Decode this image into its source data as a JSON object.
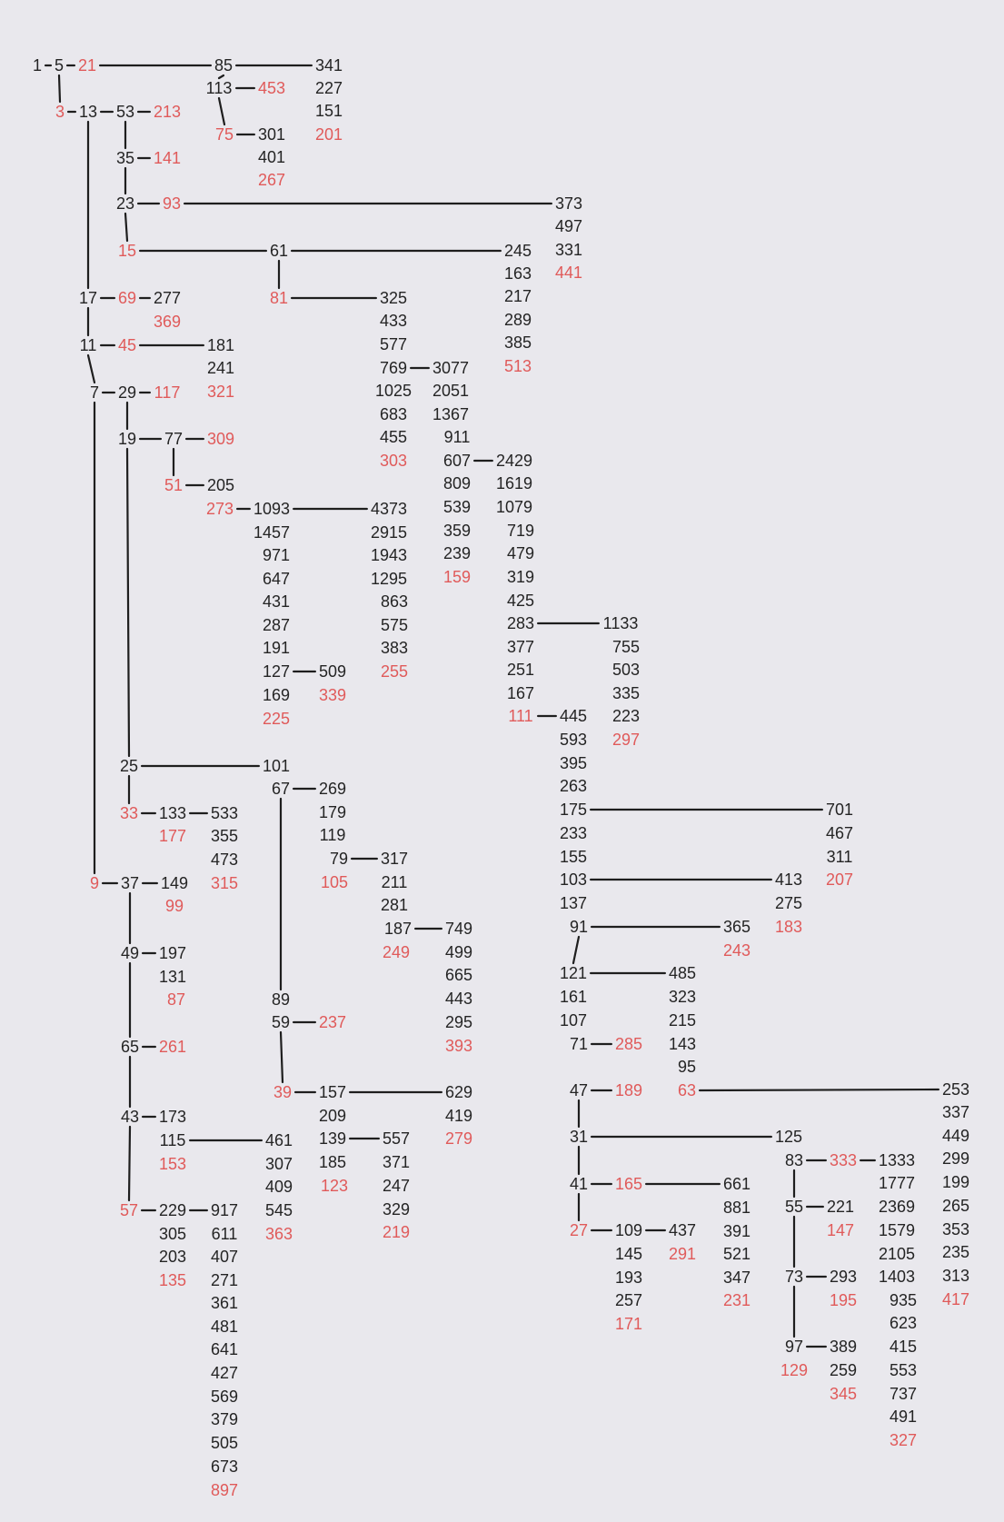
{
  "colors": {
    "background": "#e9e8ed",
    "number": "#242424",
    "highlight": "#e05a5a",
    "link": "#1e1e1e"
  },
  "numbers": [
    {
      "id": "n1",
      "v": "1"
    },
    {
      "id": "n5",
      "v": "5"
    },
    {
      "id": "n21",
      "v": "21",
      "red": true
    },
    {
      "id": "n85",
      "v": "85"
    },
    {
      "id": "n341",
      "v": "341"
    },
    {
      "id": "n227",
      "v": "227"
    },
    {
      "id": "n151",
      "v": "151"
    },
    {
      "id": "n201",
      "v": "201",
      "red": true
    },
    {
      "id": "n113",
      "v": "113"
    },
    {
      "id": "n453",
      "v": "453",
      "red": true
    },
    {
      "id": "n75",
      "v": "75",
      "red": true
    },
    {
      "id": "n301",
      "v": "301"
    },
    {
      "id": "n401",
      "v": "401"
    },
    {
      "id": "n267",
      "v": "267",
      "red": true
    },
    {
      "id": "n3",
      "v": "3",
      "red": true
    },
    {
      "id": "n13",
      "v": "13"
    },
    {
      "id": "n53",
      "v": "53"
    },
    {
      "id": "n213",
      "v": "213",
      "red": true
    },
    {
      "id": "n35",
      "v": "35"
    },
    {
      "id": "n141",
      "v": "141",
      "red": true
    },
    {
      "id": "n23",
      "v": "23"
    },
    {
      "id": "n93",
      "v": "93",
      "red": true
    },
    {
      "id": "n373",
      "v": "373"
    },
    {
      "id": "n497",
      "v": "497"
    },
    {
      "id": "n331",
      "v": "331"
    },
    {
      "id": "n441",
      "v": "441",
      "red": true
    },
    {
      "id": "n15",
      "v": "15",
      "red": true
    },
    {
      "id": "n61",
      "v": "61"
    },
    {
      "id": "n245",
      "v": "245"
    },
    {
      "id": "n163",
      "v": "163"
    },
    {
      "id": "n217",
      "v": "217"
    },
    {
      "id": "n289",
      "v": "289"
    },
    {
      "id": "n385",
      "v": "385"
    },
    {
      "id": "n513",
      "v": "513",
      "red": true
    },
    {
      "id": "n81",
      "v": "81",
      "red": true
    },
    {
      "id": "n325",
      "v": "325"
    },
    {
      "id": "n433",
      "v": "433"
    },
    {
      "id": "n577",
      "v": "577"
    },
    {
      "id": "n769",
      "v": "769"
    },
    {
      "id": "n1025",
      "v": "1025"
    },
    {
      "id": "n683",
      "v": "683"
    },
    {
      "id": "n455",
      "v": "455"
    },
    {
      "id": "n303",
      "v": "303",
      "red": true
    },
    {
      "id": "n3077",
      "v": "3077"
    },
    {
      "id": "n2051",
      "v": "2051"
    },
    {
      "id": "n1367",
      "v": "1367"
    },
    {
      "id": "n911",
      "v": "911"
    },
    {
      "id": "n607",
      "v": "607"
    },
    {
      "id": "n809",
      "v": "809"
    },
    {
      "id": "n539",
      "v": "539"
    },
    {
      "id": "n359",
      "v": "359"
    },
    {
      "id": "n239",
      "v": "239"
    },
    {
      "id": "n159",
      "v": "159",
      "red": true
    },
    {
      "id": "n2429",
      "v": "2429"
    },
    {
      "id": "n1619",
      "v": "1619"
    },
    {
      "id": "n1079",
      "v": "1079"
    },
    {
      "id": "n719",
      "v": "719"
    },
    {
      "id": "n479",
      "v": "479"
    },
    {
      "id": "n319",
      "v": "319"
    },
    {
      "id": "n425",
      "v": "425"
    },
    {
      "id": "n283",
      "v": "283"
    },
    {
      "id": "n377",
      "v": "377"
    },
    {
      "id": "n251",
      "v": "251"
    },
    {
      "id": "n167",
      "v": "167"
    },
    {
      "id": "n111",
      "v": "111",
      "red": true
    },
    {
      "id": "n1133",
      "v": "1133"
    },
    {
      "id": "n755",
      "v": "755"
    },
    {
      "id": "n503",
      "v": "503"
    },
    {
      "id": "n335",
      "v": "335"
    },
    {
      "id": "n223",
      "v": "223"
    },
    {
      "id": "n297",
      "v": "297",
      "red": true
    },
    {
      "id": "n445",
      "v": "445"
    },
    {
      "id": "n593",
      "v": "593"
    },
    {
      "id": "n395",
      "v": "395"
    },
    {
      "id": "n263",
      "v": "263"
    },
    {
      "id": "n175",
      "v": "175"
    },
    {
      "id": "n233",
      "v": "233"
    },
    {
      "id": "n155",
      "v": "155"
    },
    {
      "id": "n103",
      "v": "103"
    },
    {
      "id": "n137",
      "v": "137"
    },
    {
      "id": "n91",
      "v": "91"
    },
    {
      "id": "n701",
      "v": "701"
    },
    {
      "id": "n467",
      "v": "467"
    },
    {
      "id": "n311",
      "v": "311"
    },
    {
      "id": "n207",
      "v": "207",
      "red": true
    },
    {
      "id": "n413",
      "v": "413"
    },
    {
      "id": "n275",
      "v": "275"
    },
    {
      "id": "n183",
      "v": "183",
      "red": true
    },
    {
      "id": "n365",
      "v": "365"
    },
    {
      "id": "n243",
      "v": "243",
      "red": true
    },
    {
      "id": "n121",
      "v": "121"
    },
    {
      "id": "n161",
      "v": "161"
    },
    {
      "id": "n107",
      "v": "107"
    },
    {
      "id": "n71",
      "v": "71"
    },
    {
      "id": "n285",
      "v": "285",
      "red": true
    },
    {
      "id": "n47",
      "v": "47"
    },
    {
      "id": "n189",
      "v": "189",
      "red": true
    },
    {
      "id": "n485",
      "v": "485"
    },
    {
      "id": "n323",
      "v": "323"
    },
    {
      "id": "n215",
      "v": "215"
    },
    {
      "id": "n143",
      "v": "143"
    },
    {
      "id": "n95",
      "v": "95"
    },
    {
      "id": "n63",
      "v": "63",
      "red": true
    },
    {
      "id": "n253",
      "v": "253"
    },
    {
      "id": "n337",
      "v": "337"
    },
    {
      "id": "n449",
      "v": "449"
    },
    {
      "id": "n299",
      "v": "299"
    },
    {
      "id": "n199",
      "v": "199"
    },
    {
      "id": "n265",
      "v": "265"
    },
    {
      "id": "n353",
      "v": "353"
    },
    {
      "id": "n235",
      "v": "235"
    },
    {
      "id": "n313",
      "v": "313"
    },
    {
      "id": "n417",
      "v": "417",
      "red": true
    },
    {
      "id": "n31",
      "v": "31"
    },
    {
      "id": "n125",
      "v": "125"
    },
    {
      "id": "n83",
      "v": "83"
    },
    {
      "id": "n333",
      "v": "333",
      "red": true
    },
    {
      "id": "n1333",
      "v": "1333"
    },
    {
      "id": "n1777",
      "v": "1777"
    },
    {
      "id": "n2369",
      "v": "2369"
    },
    {
      "id": "n1579",
      "v": "1579"
    },
    {
      "id": "n2105",
      "v": "2105"
    },
    {
      "id": "n1403",
      "v": "1403"
    },
    {
      "id": "n935",
      "v": "935"
    },
    {
      "id": "n623",
      "v": "623"
    },
    {
      "id": "n415",
      "v": "415"
    },
    {
      "id": "n553",
      "v": "553"
    },
    {
      "id": "n737",
      "v": "737"
    },
    {
      "id": "n491",
      "v": "491"
    },
    {
      "id": "n327",
      "v": "327",
      "red": true
    },
    {
      "id": "n41",
      "v": "41"
    },
    {
      "id": "n165",
      "v": "165",
      "red": true
    },
    {
      "id": "n661",
      "v": "661"
    },
    {
      "id": "n881",
      "v": "881"
    },
    {
      "id": "n391",
      "v": "391"
    },
    {
      "id": "n521",
      "v": "521"
    },
    {
      "id": "n347",
      "v": "347"
    },
    {
      "id": "n231",
      "v": "231",
      "red": true
    },
    {
      "id": "n55",
      "v": "55"
    },
    {
      "id": "n221",
      "v": "221"
    },
    {
      "id": "n147",
      "v": "147",
      "red": true
    },
    {
      "id": "n27",
      "v": "27",
      "red": true
    },
    {
      "id": "n109",
      "v": "109"
    },
    {
      "id": "n437",
      "v": "437"
    },
    {
      "id": "n291",
      "v": "291",
      "red": true
    },
    {
      "id": "n145",
      "v": "145"
    },
    {
      "id": "n193",
      "v": "193"
    },
    {
      "id": "n257",
      "v": "257"
    },
    {
      "id": "n171",
      "v": "171",
      "red": true
    },
    {
      "id": "n73",
      "v": "73"
    },
    {
      "id": "n293",
      "v": "293"
    },
    {
      "id": "n195",
      "v": "195",
      "red": true
    },
    {
      "id": "n97",
      "v": "97"
    },
    {
      "id": "n389",
      "v": "389"
    },
    {
      "id": "n259",
      "v": "259"
    },
    {
      "id": "n345",
      "v": "345",
      "red": true
    },
    {
      "id": "n129",
      "v": "129",
      "red": true
    },
    {
      "id": "n17",
      "v": "17"
    },
    {
      "id": "n69",
      "v": "69",
      "red": true
    },
    {
      "id": "n277",
      "v": "277"
    },
    {
      "id": "n369",
      "v": "369",
      "red": true
    },
    {
      "id": "n11",
      "v": "11"
    },
    {
      "id": "n45",
      "v": "45",
      "red": true
    },
    {
      "id": "n181",
      "v": "181"
    },
    {
      "id": "n241",
      "v": "241"
    },
    {
      "id": "n321",
      "v": "321",
      "red": true
    },
    {
      "id": "n7",
      "v": "7"
    },
    {
      "id": "n29",
      "v": "29"
    },
    {
      "id": "n117",
      "v": "117",
      "red": true
    },
    {
      "id": "n19",
      "v": "19"
    },
    {
      "id": "n77",
      "v": "77"
    },
    {
      "id": "n309",
      "v": "309",
      "red": true
    },
    {
      "id": "n51",
      "v": "51",
      "red": true
    },
    {
      "id": "n205",
      "v": "205"
    },
    {
      "id": "n273",
      "v": "273",
      "red": true
    },
    {
      "id": "n1093",
      "v": "1093"
    },
    {
      "id": "n1457",
      "v": "1457"
    },
    {
      "id": "n971",
      "v": "971"
    },
    {
      "id": "n647",
      "v": "647"
    },
    {
      "id": "n431",
      "v": "431"
    },
    {
      "id": "n287",
      "v": "287"
    },
    {
      "id": "n191",
      "v": "191"
    },
    {
      "id": "n127",
      "v": "127"
    },
    {
      "id": "n169",
      "v": "169"
    },
    {
      "id": "n225",
      "v": "225",
      "red": true
    },
    {
      "id": "n509",
      "v": "509"
    },
    {
      "id": "n339",
      "v": "339",
      "red": true
    },
    {
      "id": "n4373",
      "v": "4373"
    },
    {
      "id": "n2915",
      "v": "2915"
    },
    {
      "id": "n1943",
      "v": "1943"
    },
    {
      "id": "n1295",
      "v": "1295"
    },
    {
      "id": "n863",
      "v": "863"
    },
    {
      "id": "n575",
      "v": "575"
    },
    {
      "id": "n383",
      "v": "383"
    },
    {
      "id": "n255",
      "v": "255",
      "red": true
    },
    {
      "id": "n25",
      "v": "25"
    },
    {
      "id": "n101",
      "v": "101"
    },
    {
      "id": "n67",
      "v": "67"
    },
    {
      "id": "n269",
      "v": "269"
    },
    {
      "id": "n179",
      "v": "179"
    },
    {
      "id": "n119",
      "v": "119"
    },
    {
      "id": "n79",
      "v": "79"
    },
    {
      "id": "n105",
      "v": "105",
      "red": true
    },
    {
      "id": "n317",
      "v": "317"
    },
    {
      "id": "n211",
      "v": "211"
    },
    {
      "id": "n281",
      "v": "281"
    },
    {
      "id": "n187",
      "v": "187"
    },
    {
      "id": "n249",
      "v": "249",
      "red": true
    },
    {
      "id": "n749",
      "v": "749"
    },
    {
      "id": "n499",
      "v": "499"
    },
    {
      "id": "n665",
      "v": "665"
    },
    {
      "id": "n443",
      "v": "443"
    },
    {
      "id": "n295",
      "v": "295"
    },
    {
      "id": "n393",
      "v": "393",
      "red": true
    },
    {
      "id": "n89",
      "v": "89"
    },
    {
      "id": "n59",
      "v": "59"
    },
    {
      "id": "n237",
      "v": "237",
      "red": true
    },
    {
      "id": "n39",
      "v": "39",
      "red": true
    },
    {
      "id": "n157",
      "v": "157"
    },
    {
      "id": "n209",
      "v": "209"
    },
    {
      "id": "n139",
      "v": "139"
    },
    {
      "id": "n185",
      "v": "185"
    },
    {
      "id": "n123",
      "v": "123",
      "red": true
    },
    {
      "id": "n629",
      "v": "629"
    },
    {
      "id": "n419",
      "v": "419"
    },
    {
      "id": "n279",
      "v": "279",
      "red": true
    },
    {
      "id": "n557",
      "v": "557"
    },
    {
      "id": "n371",
      "v": "371"
    },
    {
      "id": "n247",
      "v": "247"
    },
    {
      "id": "n329",
      "v": "329"
    },
    {
      "id": "n219",
      "v": "219",
      "red": true
    },
    {
      "id": "n33",
      "v": "33",
      "red": true
    },
    {
      "id": "n133",
      "v": "133"
    },
    {
      "id": "n177",
      "v": "177",
      "red": true
    },
    {
      "id": "n533",
      "v": "533"
    },
    {
      "id": "n355",
      "v": "355"
    },
    {
      "id": "n473",
      "v": "473"
    },
    {
      "id": "n315",
      "v": "315",
      "red": true
    },
    {
      "id": "n9",
      "v": "9",
      "red": true
    },
    {
      "id": "n37",
      "v": "37"
    },
    {
      "id": "n149",
      "v": "149"
    },
    {
      "id": "n99",
      "v": "99",
      "red": true
    },
    {
      "id": "n49",
      "v": "49"
    },
    {
      "id": "n197",
      "v": "197"
    },
    {
      "id": "n131",
      "v": "131"
    },
    {
      "id": "n87",
      "v": "87",
      "red": true
    },
    {
      "id": "n65",
      "v": "65"
    },
    {
      "id": "n261",
      "v": "261",
      "red": true
    },
    {
      "id": "n43",
      "v": "43"
    },
    {
      "id": "n173",
      "v": "173"
    },
    {
      "id": "n115",
      "v": "115"
    },
    {
      "id": "n153",
      "v": "153",
      "red": true
    },
    {
      "id": "n461",
      "v": "461"
    },
    {
      "id": "n307",
      "v": "307"
    },
    {
      "id": "n409",
      "v": "409"
    },
    {
      "id": "n545",
      "v": "545"
    },
    {
      "id": "n363",
      "v": "363",
      "red": true
    },
    {
      "id": "n57",
      "v": "57",
      "red": true
    },
    {
      "id": "n229",
      "v": "229"
    },
    {
      "id": "n305",
      "v": "305"
    },
    {
      "id": "n203",
      "v": "203"
    },
    {
      "id": "n135",
      "v": "135",
      "red": true
    },
    {
      "id": "n917",
      "v": "917"
    },
    {
      "id": "n611",
      "v": "611"
    },
    {
      "id": "n407",
      "v": "407"
    },
    {
      "id": "n271",
      "v": "271"
    },
    {
      "id": "n361",
      "v": "361"
    },
    {
      "id": "n481",
      "v": "481"
    },
    {
      "id": "n641",
      "v": "641"
    },
    {
      "id": "n427",
      "v": "427"
    },
    {
      "id": "n569",
      "v": "569"
    },
    {
      "id": "n379",
      "v": "379"
    },
    {
      "id": "n505",
      "v": "505"
    },
    {
      "id": "n673",
      "v": "673"
    },
    {
      "id": "n897",
      "v": "897",
      "red": true
    }
  ],
  "links": [
    [
      "n1",
      "n5"
    ],
    [
      "n5",
      "n21"
    ],
    [
      "n21",
      "n85"
    ],
    [
      "n85",
      "n341"
    ],
    [
      "n85",
      "n113"
    ],
    [
      "n113",
      "n453"
    ],
    [
      "n113",
      "n75"
    ],
    [
      "n75",
      "n301"
    ],
    [
      "n5",
      "n3"
    ],
    [
      "n3",
      "n13"
    ],
    [
      "n13",
      "n53"
    ],
    [
      "n53",
      "n213"
    ],
    [
      "n53",
      "n35"
    ],
    [
      "n35",
      "n141"
    ],
    [
      "n35",
      "n23"
    ],
    [
      "n23",
      "n93"
    ],
    [
      "n93",
      "n373"
    ],
    [
      "n23",
      "n15"
    ],
    [
      "n15",
      "n61"
    ],
    [
      "n61",
      "n245"
    ],
    [
      "n61",
      "n81"
    ],
    [
      "n81",
      "n325"
    ],
    [
      "n769",
      "n3077"
    ],
    [
      "n607",
      "n2429"
    ],
    [
      "n283",
      "n1133"
    ],
    [
      "n111",
      "n445"
    ],
    [
      "n175",
      "n701"
    ],
    [
      "n103",
      "n413"
    ],
    [
      "n91",
      "n365"
    ],
    [
      "n91",
      "n121"
    ],
    [
      "n121",
      "n485"
    ],
    [
      "n71",
      "n285"
    ],
    [
      "n47",
      "n189"
    ],
    [
      "n63",
      "n253"
    ],
    [
      "n47",
      "n31"
    ],
    [
      "n31",
      "n125"
    ],
    [
      "n83",
      "n333"
    ],
    [
      "n333",
      "n1333"
    ],
    [
      "n83",
      "n55"
    ],
    [
      "n31",
      "n41"
    ],
    [
      "n41",
      "n165"
    ],
    [
      "n165",
      "n661"
    ],
    [
      "n55",
      "n221"
    ],
    [
      "n55",
      "n73"
    ],
    [
      "n41",
      "n27"
    ],
    [
      "n27",
      "n109"
    ],
    [
      "n109",
      "n437"
    ],
    [
      "n73",
      "n293"
    ],
    [
      "n73",
      "n97"
    ],
    [
      "n97",
      "n389"
    ],
    [
      "n13",
      "n17"
    ],
    [
      "n17",
      "n69"
    ],
    [
      "n69",
      "n277"
    ],
    [
      "n17",
      "n11"
    ],
    [
      "n11",
      "n45"
    ],
    [
      "n45",
      "n181"
    ],
    [
      "n11",
      "n7"
    ],
    [
      "n7",
      "n29"
    ],
    [
      "n29",
      "n117"
    ],
    [
      "n29",
      "n19"
    ],
    [
      "n19",
      "n77"
    ],
    [
      "n77",
      "n309"
    ],
    [
      "n77",
      "n51"
    ],
    [
      "n51",
      "n205"
    ],
    [
      "n273",
      "n1093"
    ],
    [
      "n1093",
      "n4373"
    ],
    [
      "n127",
      "n509"
    ],
    [
      "n19",
      "n25"
    ],
    [
      "n25",
      "n101"
    ],
    [
      "n67",
      "n269"
    ],
    [
      "n67",
      "n89"
    ],
    [
      "n79",
      "n317"
    ],
    [
      "n187",
      "n749"
    ],
    [
      "n59",
      "n237"
    ],
    [
      "n59",
      "n39"
    ],
    [
      "n39",
      "n157"
    ],
    [
      "n157",
      "n629"
    ],
    [
      "n139",
      "n557"
    ],
    [
      "n25",
      "n33"
    ],
    [
      "n33",
      "n133"
    ],
    [
      "n133",
      "n533"
    ],
    [
      "n7",
      "n9"
    ],
    [
      "n9",
      "n37"
    ],
    [
      "n37",
      "n149"
    ],
    [
      "n37",
      "n49"
    ],
    [
      "n49",
      "n197"
    ],
    [
      "n49",
      "n65"
    ],
    [
      "n65",
      "n261"
    ],
    [
      "n65",
      "n43"
    ],
    [
      "n43",
      "n173"
    ],
    [
      "n115",
      "n461"
    ],
    [
      "n43",
      "n57"
    ],
    [
      "n57",
      "n229"
    ],
    [
      "n229",
      "n917"
    ]
  ]
}
